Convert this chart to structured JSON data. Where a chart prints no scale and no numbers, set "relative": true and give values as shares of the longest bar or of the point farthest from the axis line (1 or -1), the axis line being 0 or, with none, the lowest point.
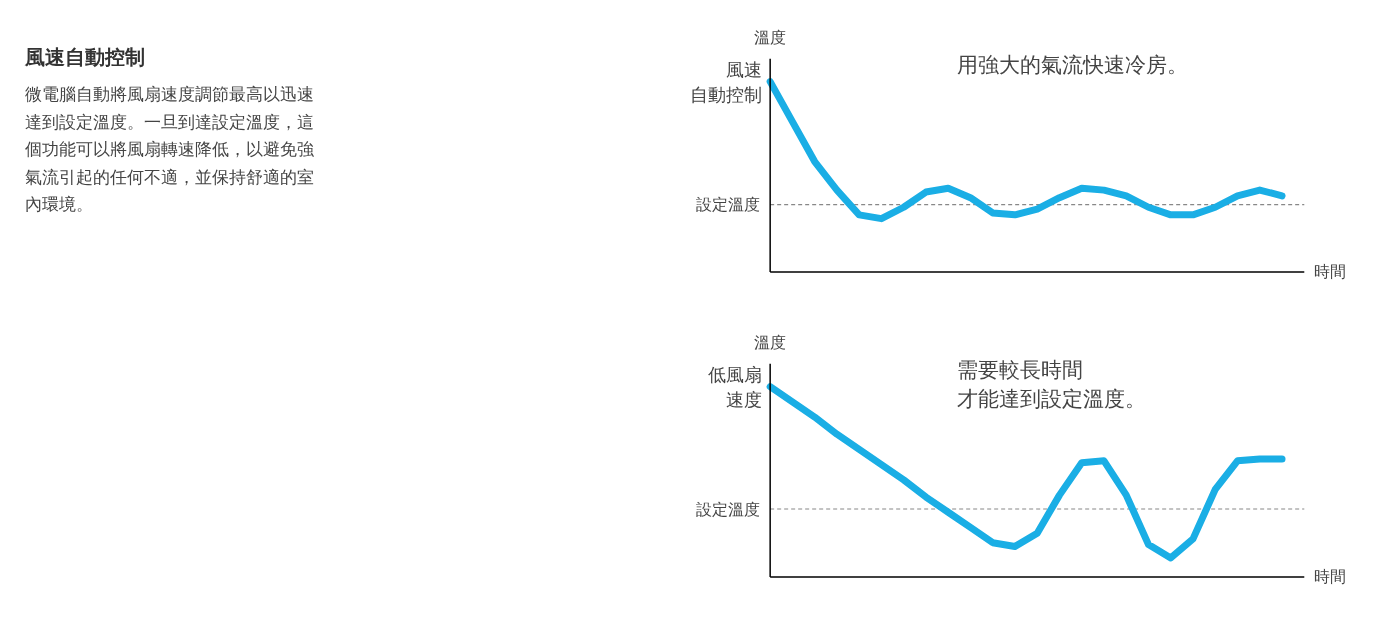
{
  "chart_data": [
    {
      "type": "other",
      "title": "風速自動控制",
      "annotations": [
        "微電腦自動將風扇速度調節最高以迅速達到設定溫度。一旦到達設定溫度，這個功能可以將風扇轉速降低，以避免強氣流引起的任何不適，並保持舒適的室內環境。"
      ]
    },
    {
      "type": "line",
      "relative": true,
      "xlabel": "時間",
      "ylabel": "溫度",
      "grid": false,
      "legend": false,
      "categories": [
        null,
        null,
        null,
        null,
        null,
        null,
        null,
        null,
        null,
        null,
        null,
        null,
        null,
        null,
        null,
        null,
        null,
        null,
        null,
        null,
        null,
        null,
        null,
        null
      ],
      "series": [
        {
          "name": "風速自動控制",
          "color": "#1aaee5",
          "values": [
            1.0,
            0.79,
            0.58,
            0.43,
            0.3,
            0.28,
            0.34,
            0.42,
            0.44,
            0.39,
            0.31,
            0.3,
            0.33,
            0.39,
            0.44,
            0.43,
            0.4,
            0.34,
            0.3,
            0.3,
            0.34,
            0.4,
            0.43,
            0.4
          ]
        }
      ],
      "ref_lines": [
        {
          "axis": "y",
          "value": 0.354,
          "label": "設定溫度",
          "color": "#888888",
          "line_style": "dashed"
        }
      ],
      "annotations": [
        "用強大的氣流快速冷房。"
      ]
    },
    {
      "type": "line",
      "relative": true,
      "xlabel": "時間",
      "ylabel": "溫度",
      "grid": false,
      "legend": false,
      "categories": [
        null,
        null,
        null,
        null,
        null,
        null,
        null,
        null,
        null,
        null,
        null,
        null,
        null,
        null,
        null,
        null,
        null,
        null,
        null,
        null,
        null,
        null,
        null,
        null
      ],
      "series": [
        {
          "name": "低風扇速度",
          "color": "#1aaee5",
          "values": [
            1.0,
            0.92,
            0.84,
            0.75,
            0.67,
            0.59,
            0.51,
            0.42,
            0.34,
            0.26,
            0.18,
            0.16,
            0.23,
            0.43,
            0.6,
            0.61,
            0.43,
            0.17,
            0.1,
            0.2,
            0.46,
            0.61,
            0.62,
            0.62
          ]
        }
      ],
      "ref_lines": [
        {
          "axis": "y",
          "value": 0.357,
          "label": "設定溫度",
          "color": "#888888",
          "line_style": "dashed"
        }
      ],
      "annotations": [
        "需要較長時間才能達到設定溫度。"
      ]
    }
  ]
}
